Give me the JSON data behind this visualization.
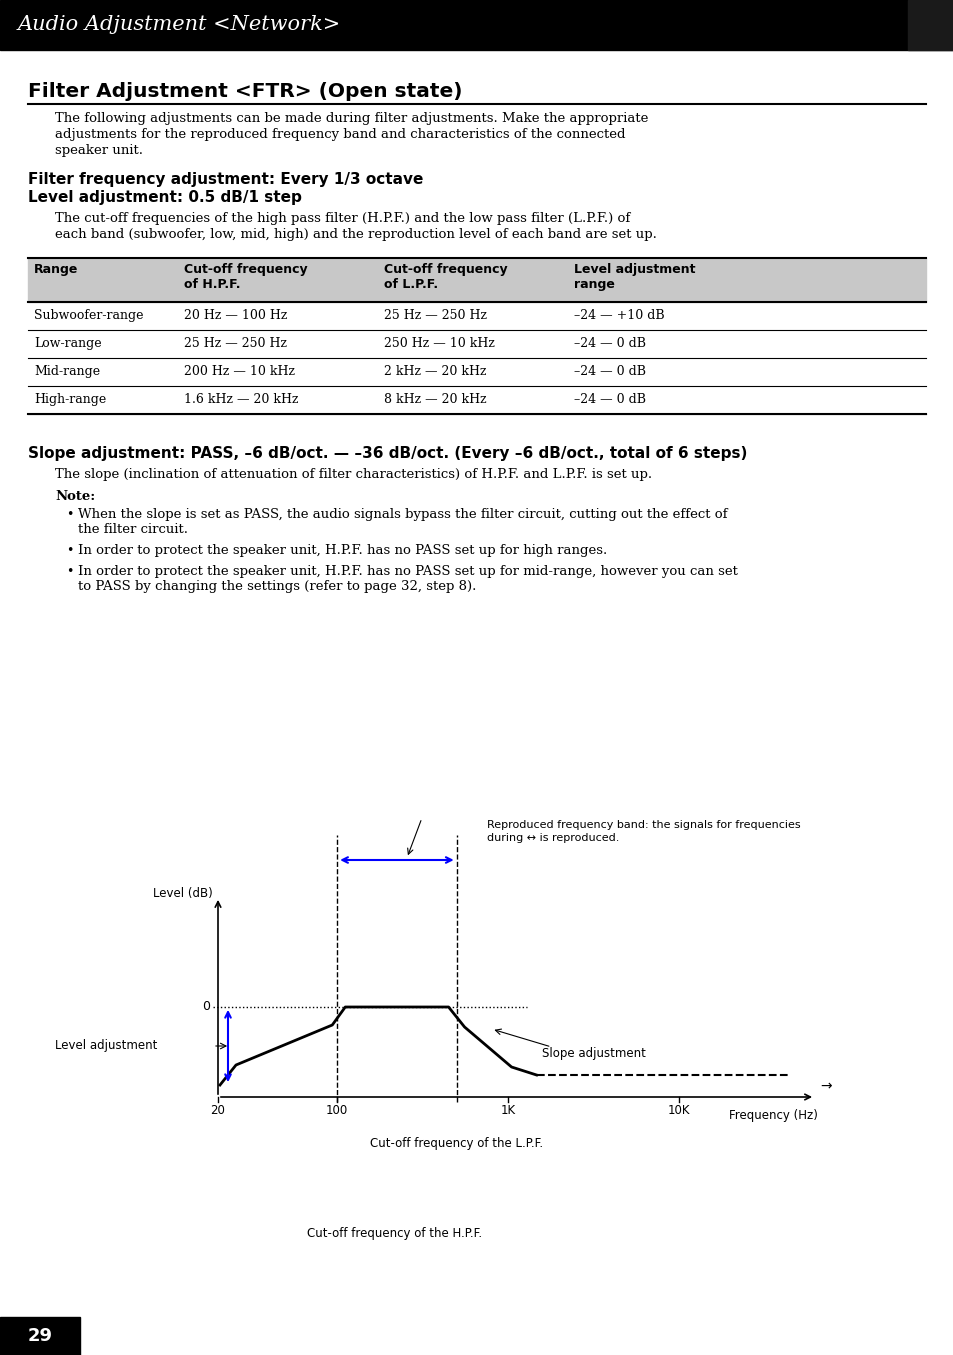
{
  "page_bg": "#ffffff",
  "header_bg": "#000000",
  "header_text": "Audio Adjustment <Network>",
  "header_text_color": "#ffffff",
  "section_title": "Filter Adjustment <FTR> (Open state)",
  "intro_text_line1": "The following adjustments can be made during filter adjustments. Make the appropriate",
  "intro_text_line2": "adjustments for the reproduced frequency band and characteristics of the connected",
  "intro_text_line3": "speaker unit.",
  "subsec_line1": "Filter frequency adjustment: Every 1/3 octave",
  "subsec_line2": "Level adjustment: 0.5 dB/1 step",
  "body_line1": "The cut-off frequencies of the high pass filter (H.P.F.) and the low pass filter (L.P.F.) of",
  "body_line2": "each band (subwoofer, low, mid, high) and the reproduction level of each band are set up.",
  "table_header_bg": "#c8c8c8",
  "table_col_headers": [
    "Range",
    "Cut-off frequency\nof H.P.F.",
    "Cut-off frequency\nof L.P.F.",
    "Level adjustment\nrange"
  ],
  "table_rows": [
    [
      "Subwoofer-range",
      "20 Hz — 100 Hz",
      "25 Hz — 250 Hz",
      "–24 — +10 dB"
    ],
    [
      "Low-range",
      "25 Hz — 250 Hz",
      "250 Hz — 10 kHz",
      "–24 — 0 dB"
    ],
    [
      "Mid-range",
      "200 Hz — 10 kHz",
      "2 kHz — 20 kHz",
      "–24 — 0 dB"
    ],
    [
      "High-range",
      "1.6 kHz — 20 kHz",
      "8 kHz — 20 kHz",
      "–24 — 0 dB"
    ]
  ],
  "slope_title": "Slope adjustment: PASS, –6 dB/oct. — –36 dB/oct. (Every –6 dB/oct., total of 6 steps)",
  "slope_body": "The slope (inclination of attenuation of filter characteristics) of H.P.F. and L.P.F. is set up.",
  "note_title": "Note:",
  "note_bullets": [
    [
      "When the slope is set as PASS, the audio signals bypass the filter circuit, cutting out the effect of",
      "the filter circuit."
    ],
    [
      "In order to protect the speaker unit, H.P.F. has no PASS set up for high ranges."
    ],
    [
      "In order to protect the speaker unit, H.P.F. has no PASS set up for mid-range, however you can set",
      "to PASS by changing the settings (refer to page 32, step 8)."
    ]
  ],
  "page_number": "29",
  "footer_bg": "#000000",
  "footer_text_color": "#ffffff",
  "diag_label_level": "Level (dB)",
  "diag_label_freq": "Frequency (Hz)",
  "diag_label_0": "0",
  "diag_label_repr": "Reproduced frequency band: the signals for frequencies\nduring ↔ is reproduced.",
  "diag_label_level_adj": "Level adjustment",
  "diag_label_slope": "Slope adjustment",
  "diag_label_lpf": "Cut-off frequency of the L.P.F.",
  "diag_label_hpf": "Cut-off frequency of the H.P.F.",
  "diag_ticks": [
    "20",
    "100",
    "1K",
    "10K"
  ],
  "diag_tick_freqs": [
    20,
    100,
    1000,
    10000
  ]
}
